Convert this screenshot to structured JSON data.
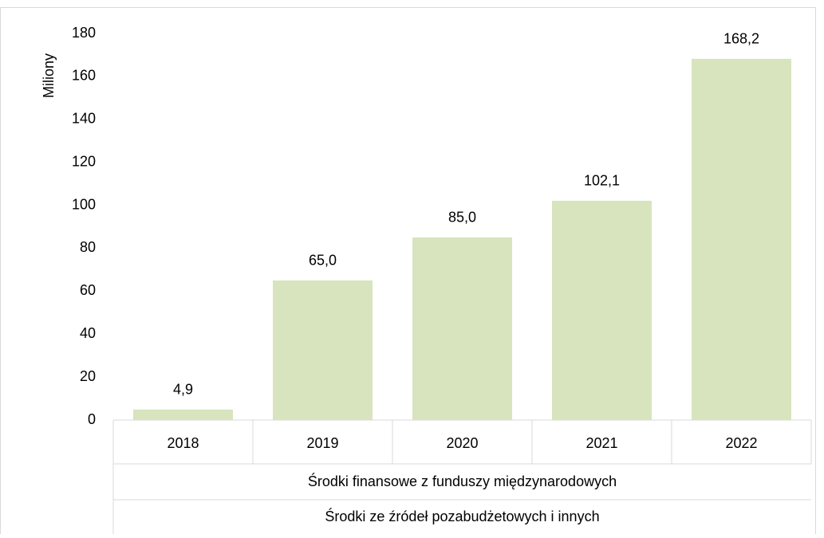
{
  "chart_data": {
    "type": "bar",
    "y_label": "Miliony",
    "categories": [
      "2018",
      "2019",
      "2020",
      "2021",
      "2022"
    ],
    "category_groups": [
      "Środki finansowe z funduszy międzynarodowych",
      "Środki ze źródeł pozabudżetowych i innych"
    ],
    "values": [
      4.9,
      65.0,
      85.0,
      102.1,
      168.2
    ],
    "value_labels": [
      "4,9",
      "65,0",
      "85,0",
      "102,1",
      "168,2"
    ],
    "color": "#d7e4bd",
    "ylim": [
      0,
      180
    ],
    "yticks": [
      0,
      20,
      40,
      60,
      80,
      100,
      120,
      140,
      160,
      180
    ],
    "grid": false
  }
}
